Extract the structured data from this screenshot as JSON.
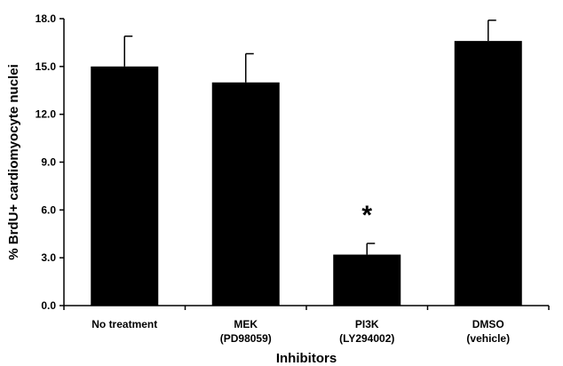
{
  "chart_data": {
    "type": "bar",
    "title": "",
    "xlabel": "Inhibitors",
    "ylabel": "% BrdU+ cardiomyocyte nuclei",
    "ylim": [
      0,
      18
    ],
    "yticks": [
      "0.0",
      "3.0",
      "6.0",
      "9.0",
      "12.0",
      "15.0",
      "18.0"
    ],
    "grid": false,
    "legend": "none",
    "bar_color": "#000000",
    "categories": [
      {
        "line1": "No treatment",
        "line2": ""
      },
      {
        "line1": "MEK",
        "line2": "(PD98059)"
      },
      {
        "line1": "PI3K",
        "line2": "(LY294002)"
      },
      {
        "line1": "DMSO",
        "line2": "(vehicle)"
      }
    ],
    "values": [
      15.0,
      14.0,
      3.2,
      16.6
    ],
    "error_upper": [
      1.9,
      1.8,
      0.7,
      1.3
    ],
    "annotations": [
      {
        "category_index": 2,
        "text": "*"
      }
    ]
  }
}
